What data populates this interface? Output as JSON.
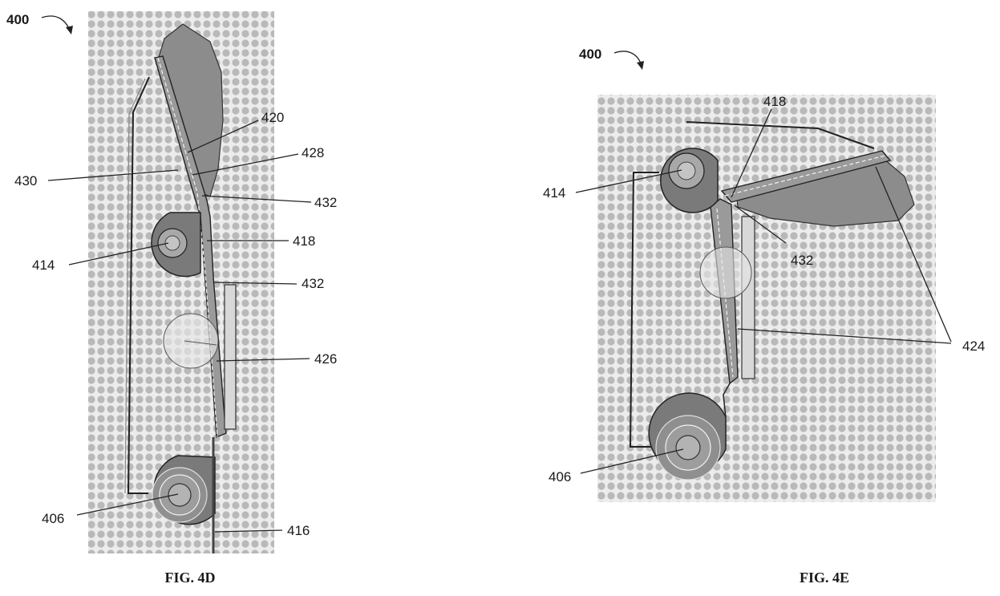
{
  "figures": [
    {
      "caption": "FIG. 4D",
      "figure_number": "400",
      "labels": {
        "r420": "420",
        "r428": "428",
        "r430": "430",
        "r432a": "432",
        "r418": "418",
        "r414": "414",
        "r432b": "432",
        "r426": "426",
        "r406": "406",
        "r416": "416"
      }
    },
    {
      "caption": "FIG. 4E",
      "figure_number": "400",
      "labels": {
        "r418": "418",
        "r414": "414",
        "r432": "432",
        "r424": "424",
        "r406": "406"
      }
    }
  ],
  "colors": {
    "panel_dot": "#b9b9b9",
    "panel_bg": "#ececec",
    "roller": "#7a7a7a",
    "shade": "#8c8c8c",
    "outline": "#222222"
  }
}
